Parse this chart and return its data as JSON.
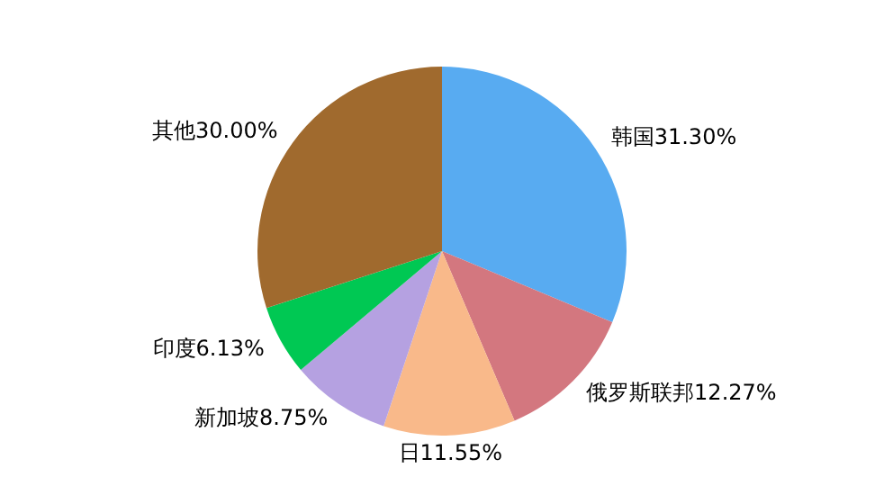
{
  "chart_data": {
    "type": "pie",
    "categories": [
      "韩国",
      "俄罗斯联邦",
      "日",
      "新加坡",
      "印度",
      "其他"
    ],
    "values": [
      31.3,
      12.27,
      11.55,
      8.75,
      6.13,
      30.0
    ],
    "value_labels": [
      "31.30%",
      "12.27%",
      "11.55%",
      "8.75%",
      "6.13%",
      "30.00%"
    ],
    "colors": [
      "#58abf1",
      "#d3777f",
      "#f9b98a",
      "#b5a1e1",
      "#00c853",
      "#a06a2e"
    ],
    "legend": false
  }
}
